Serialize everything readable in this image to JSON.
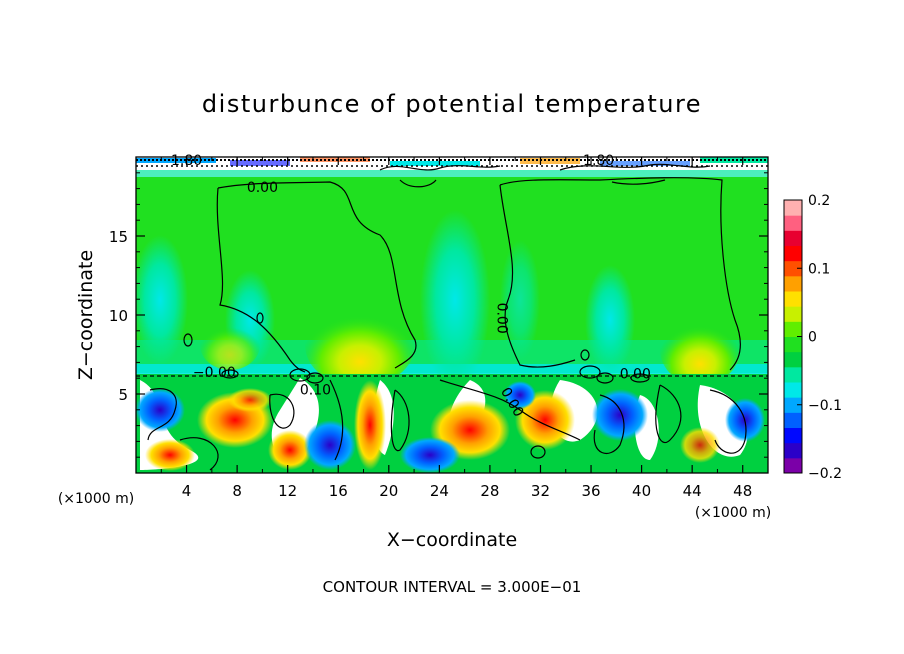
{
  "chart_data": {
    "type": "heatmap",
    "title": "disturbunce of potential temperature",
    "xlabel": "X−coordinate",
    "ylabel": "Z−coordinate",
    "x_unit_left": "(×1000 m)",
    "x_unit_right": "(×1000 m)",
    "xlim": [
      0,
      50
    ],
    "ylim": [
      0,
      20
    ],
    "x_ticks": [
      4,
      8,
      12,
      16,
      20,
      24,
      28,
      32,
      36,
      40,
      44,
      48
    ],
    "y_ticks": [
      5,
      10,
      15
    ],
    "colorbar": {
      "min": -0.2,
      "max": 0.2,
      "ticks": [
        {
          "value": 0.2,
          "label": "0.2"
        },
        {
          "value": 0.1,
          "label": "0.1"
        },
        {
          "value": 0.0,
          "label": "0"
        },
        {
          "value": -0.1,
          "label": "−0.1"
        },
        {
          "value": -0.2,
          "label": "−0.2"
        }
      ],
      "colors": [
        "#7b00a8",
        "#2b00c8",
        "#0008ff",
        "#0060ff",
        "#00a8ff",
        "#00e8e8",
        "#00e8a0",
        "#00d040",
        "#20e020",
        "#60ee00",
        "#c8f000",
        "#ffe000",
        "#ffa000",
        "#ff5000",
        "#ff0000",
        "#e80030",
        "#ff6080",
        "#ffb0b0"
      ]
    },
    "contour_labels": [
      {
        "text": "0.00",
        "x": 10.0,
        "z": 18.1
      },
      {
        "text": "0.00",
        "x": 29.0,
        "z": 9.8,
        "rotate": 90
      },
      {
        "text": "−0.00",
        "x": 6.2,
        "z": 6.4
      },
      {
        "text": "0.00",
        "x": 29.8,
        "z": 4.5,
        "rotate": 60
      },
      {
        "text": "0.00",
        "x": 39.5,
        "z": 6.3
      },
      {
        "text": "0.10",
        "x": 14.2,
        "z": 5.3
      },
      {
        "text": "1.80",
        "x": 4.0,
        "z": 19.8
      },
      {
        "text": "1.80",
        "x": 36.6,
        "z": 19.8
      }
    ],
    "contour_interval_text": "CONTOUR INTERVAL = 3.000E−01"
  }
}
